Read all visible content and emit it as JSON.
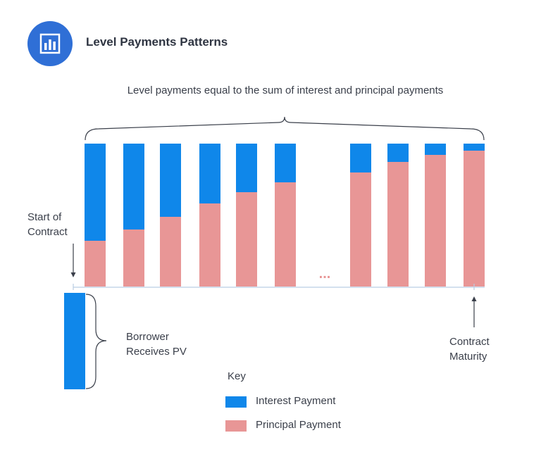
{
  "header": {
    "title": "Level Payments Patterns",
    "icon": "bar-chart-icon"
  },
  "diagram": {
    "brace_label": "Level payments equal to the sum of interest and principal payments",
    "start_label_line1": "Start of",
    "start_label_line2": "Contract",
    "maturity_label_line1": "Contract",
    "maturity_label_line2": "Maturity",
    "borrower_label_line1": "Borrower",
    "borrower_label_line2": "Receives PV",
    "ellipsis": "...",
    "payments_principal_share": [
      0.32,
      0.4,
      0.49,
      0.58,
      0.66,
      0.73,
      0.8,
      0.87,
      0.92,
      0.95
    ],
    "borrower_bar_label": "PV"
  },
  "key": {
    "title": "Key",
    "items": [
      {
        "label": "Interest Payment",
        "color": "#0f87ea"
      },
      {
        "label": "Principal Payment",
        "color": "#e89696"
      }
    ]
  },
  "colors": {
    "interest": "#0f87ea",
    "principal": "#e89696",
    "brand": "#2f6fd6",
    "axis": "#b9cde3"
  }
}
